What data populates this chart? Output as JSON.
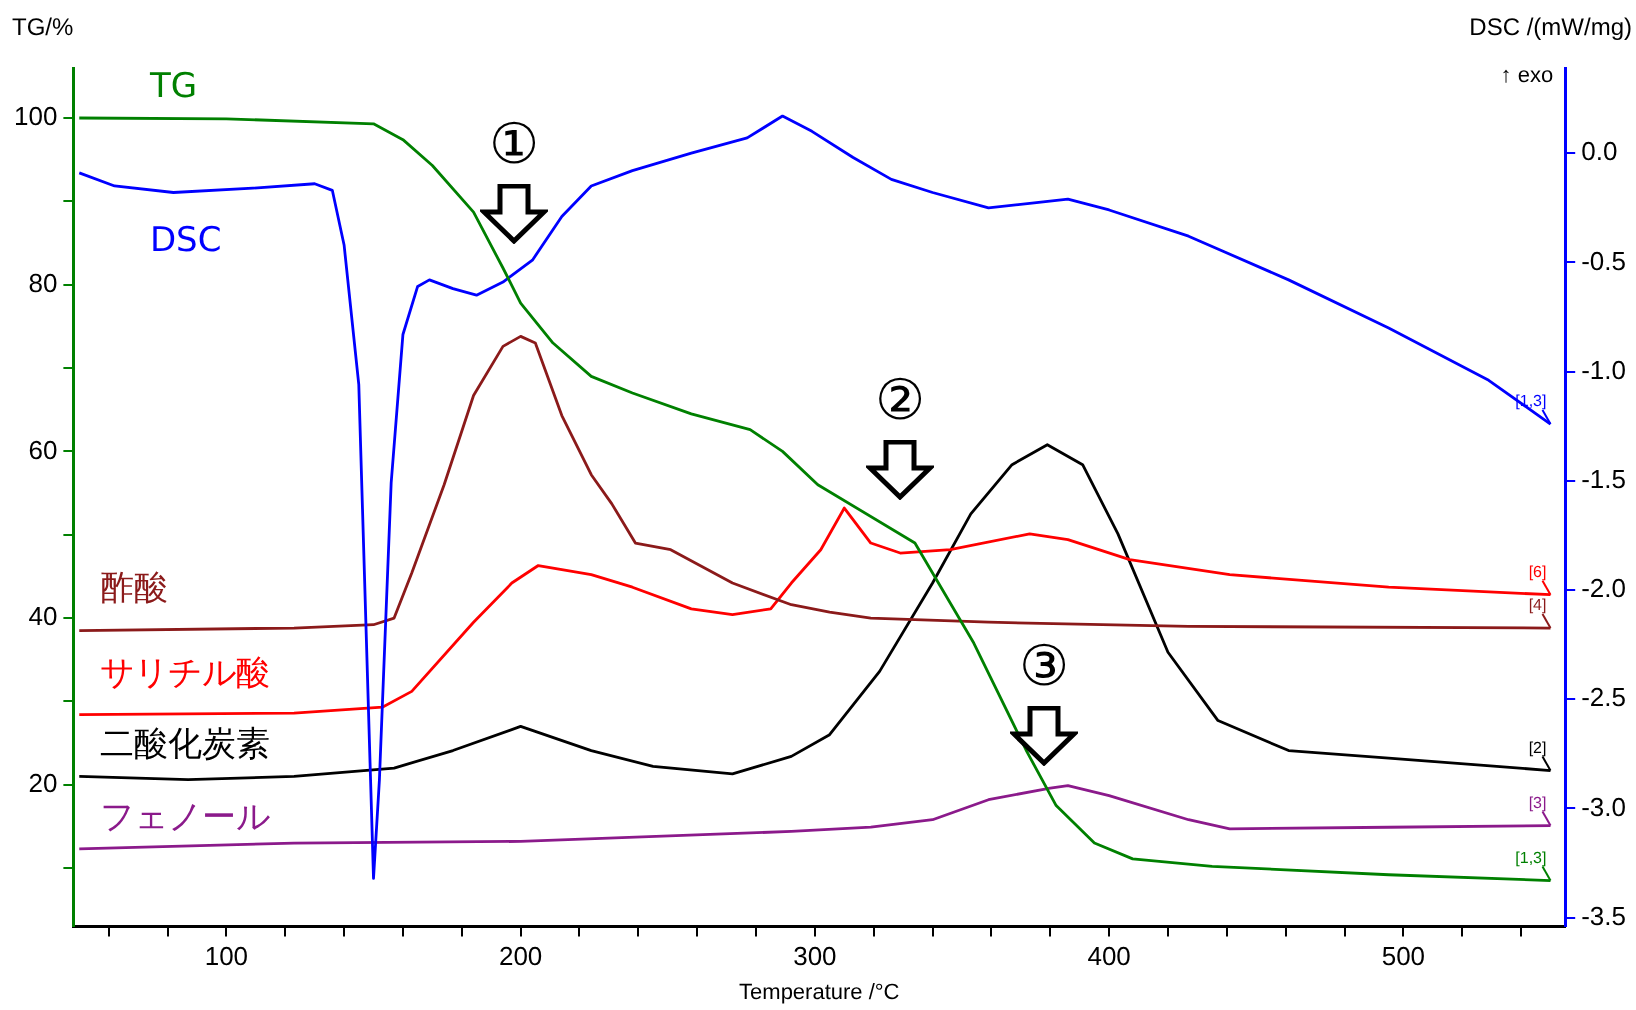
{
  "chart_data": {
    "type": "line",
    "xlabel": "Temperature /°C",
    "ylabel": "TG/%",
    "y2label": "DSC /(mW/mg)",
    "xlim": [
      48,
      555
    ],
    "xticks": [
      {
        "value": 60,
        "label": null
      },
      {
        "value": 80,
        "label": null
      },
      100,
      {
        "value": 120,
        "label": null
      },
      {
        "value": 140,
        "label": null
      },
      {
        "value": 160,
        "label": null
      },
      {
        "value": 180,
        "label": null
      },
      200,
      {
        "value": 220,
        "label": null
      },
      {
        "value": 240,
        "label": null
      },
      {
        "value": 260,
        "label": null
      },
      {
        "value": 280,
        "label": null
      },
      300,
      {
        "value": 320,
        "label": null
      },
      {
        "value": 340,
        "label": null
      },
      {
        "value": 360,
        "label": null
      },
      {
        "value": 380,
        "label": null
      },
      400,
      {
        "value": 420,
        "label": null
      },
      {
        "value": 440,
        "label": null
      },
      {
        "value": 460,
        "label": null
      },
      {
        "value": 480,
        "label": null
      },
      500,
      {
        "value": 520,
        "label": null
      },
      {
        "value": 540,
        "label": null
      }
    ],
    "ylim": [
      3,
      106
    ],
    "yticks": [
      {
        "value": 10,
        "label": null
      },
      20,
      {
        "value": 30,
        "label": null
      },
      40,
      {
        "value": 50,
        "label": null
      },
      60,
      {
        "value": 70,
        "label": null
      },
      80,
      {
        "value": 90,
        "label": null
      },
      100
    ],
    "y2lim": [
      -3.54,
      0.39
    ],
    "y2ticks": [
      -3.5,
      {
        "value": -3,
        "label": "-3.0"
      },
      -2.5,
      {
        "value": -2,
        "label": "-2.0"
      },
      -1.5,
      {
        "value": -1,
        "label": "-1.0"
      },
      -0.5,
      {
        "value": 0,
        "label": "0.0"
      }
    ],
    "legend": false,
    "grid": false,
    "marker": "none",
    "line_style": "solid",
    "series": [
      {
        "name": "TG",
        "color": "#008000",
        "x": [
          50,
          100,
          150,
          160,
          170,
          184,
          194,
          200,
          211,
          224,
          238,
          258,
          278,
          289,
          301,
          334,
          354,
          372,
          382,
          395,
          408,
          435,
          495,
          550
        ],
        "values": [
          100,
          99.9,
          99.3,
          97.4,
          94.3,
          88.7,
          82,
          77.8,
          73,
          69,
          67,
          64.5,
          62.6,
          60,
          56,
          49,
          37,
          24,
          17.5,
          13,
          11.1,
          10.2,
          9.2,
          8.5
        ]
      },
      {
        "name": "DSC",
        "color": "#0000ff",
        "axis": "y2",
        "x": [
          50,
          62,
          82,
          109,
          130,
          136,
          140,
          145,
          149,
          150,
          152,
          156,
          160,
          165,
          169,
          177,
          185,
          194,
          204,
          214,
          224,
          238,
          258,
          277,
          289,
          299,
          313,
          326,
          340,
          359,
          373,
          386,
          400,
          427,
          461,
          495,
          529,
          550
        ],
        "values": [
          -0.09,
          -0.15,
          -0.18,
          -0.16,
          -0.14,
          -0.17,
          -0.42,
          -1.06,
          -2.87,
          -3.32,
          -2.87,
          -1.51,
          -0.83,
          -0.61,
          -0.58,
          -0.62,
          -0.65,
          -0.59,
          -0.49,
          -0.29,
          -0.15,
          -0.08,
          0.0,
          0.07,
          0.17,
          0.1,
          -0.02,
          -0.12,
          -0.18,
          -0.25,
          -0.23,
          -0.21,
          -0.26,
          -0.38,
          -0.58,
          -0.8,
          -1.04,
          -1.24
        ]
      },
      {
        "name": "酢酸",
        "color": "#8b1a1a",
        "x": [
          50,
          123,
          150,
          157,
          163,
          174,
          184,
          194,
          200,
          205,
          214,
          224,
          231,
          239,
          251,
          272,
          292,
          305,
          319,
          359,
          427,
          550
        ],
        "values": [
          38.5,
          38.8,
          39.2,
          40,
          45.4,
          56,
          66.7,
          72.6,
          73.8,
          73,
          64.3,
          57.2,
          53.7,
          49,
          48.2,
          44.2,
          41.6,
          40.7,
          40,
          39.5,
          39,
          38.8
        ]
      },
      {
        "name": "サリチル酸",
        "color": "#ff0000",
        "x": [
          50,
          123,
          153,
          163,
          184,
          197,
          206,
          224,
          238,
          258,
          272,
          285,
          292,
          302,
          310,
          319,
          329,
          346,
          373,
          386,
          407,
          441,
          495,
          550
        ],
        "values": [
          28.4,
          28.6,
          29.3,
          31.2,
          39.5,
          44.2,
          46.3,
          45.2,
          43.7,
          41.1,
          40.4,
          41.1,
          44.2,
          48.2,
          53.2,
          49,
          47.8,
          48.2,
          50.1,
          49.4,
          47,
          45.2,
          43.7,
          42.8
        ]
      },
      {
        "name": "二酸化炭素",
        "color": "#000000",
        "x": [
          50,
          87,
          123,
          157,
          177,
          200,
          224,
          245,
          272,
          292,
          305,
          322,
          340,
          353,
          367,
          379,
          391,
          403,
          420,
          437,
          461,
          495,
          550
        ],
        "values": [
          21,
          20.6,
          21,
          22,
          24.1,
          27,
          24.1,
          22.2,
          21.3,
          23.4,
          26,
          33.6,
          44.2,
          52.5,
          58.4,
          60.8,
          58.4,
          50.1,
          35.9,
          27.7,
          24.1,
          23.2,
          21.7
        ]
      },
      {
        "name": "フェノール",
        "color": "#8b1a8b",
        "x": [
          50,
          123,
          200,
          292,
          319,
          340,
          359,
          380,
          386,
          400,
          427,
          441,
          495,
          550
        ],
        "values": [
          12.3,
          13,
          13.2,
          14.4,
          14.9,
          15.8,
          18.2,
          19.6,
          19.9,
          18.7,
          15.8,
          14.7,
          14.9,
          15.1
        ]
      }
    ],
    "annotations": [
      "↑ exo",
      "①",
      "②",
      "③",
      "[1,3]",
      "[1,3]",
      "[4]",
      "[6]",
      "[2]",
      "[3]"
    ]
  }
}
